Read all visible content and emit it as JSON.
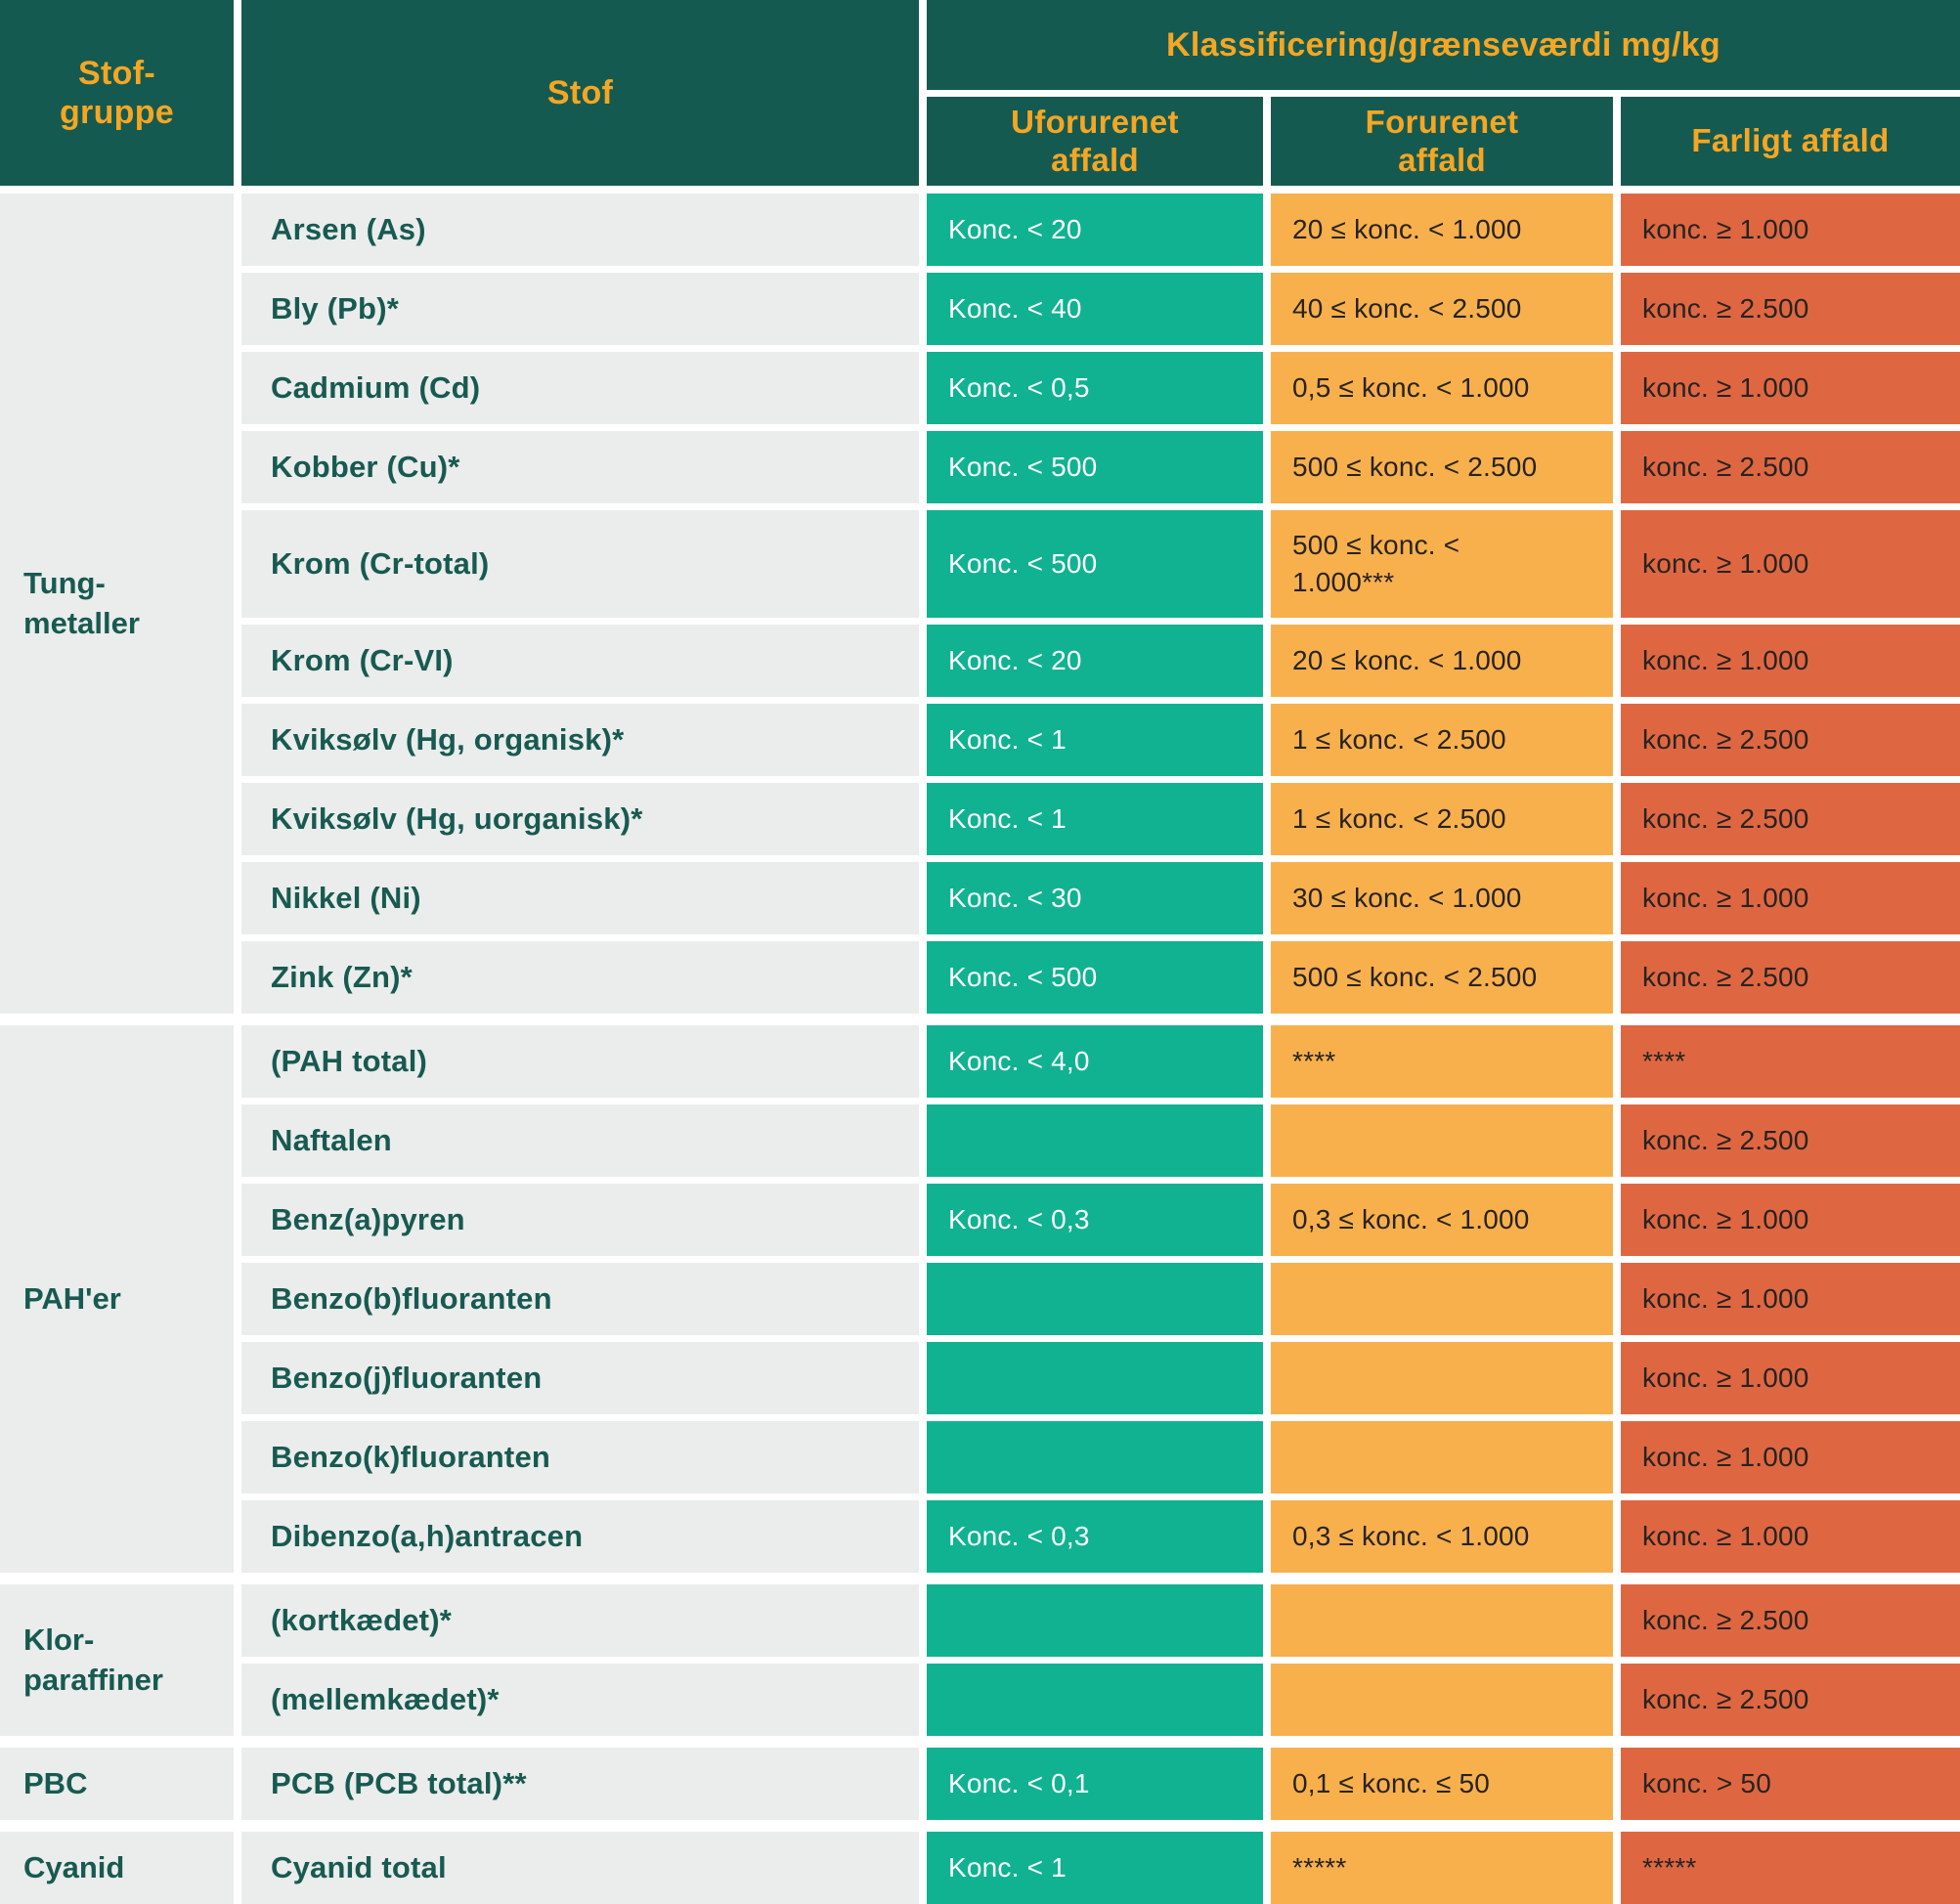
{
  "colors": {
    "header_bg": "#155a50",
    "header_text": "#f5a623",
    "cell_bg": "#ebecec",
    "name_text": "#175a51",
    "green": "#10b291",
    "orange": "#f8b04d",
    "red": "#de6742",
    "value_light": "#ffffff",
    "value_dark": "#272320"
  },
  "header": {
    "stof_gruppe": "Stof-\ngruppe",
    "stof": "Stof",
    "klassificering": "Klassificering/grænseværdi mg/kg",
    "uforurenet": "Uforurenet\naffald",
    "forurenet": "Forurenet\naffald",
    "farligt": "Farligt affald"
  },
  "groups": [
    {
      "label": "Tung-\nmetaller",
      "rows": [
        {
          "stof": "Arsen (As)",
          "uforurenet": "Konc. < 20",
          "forurenet": "20 ≤ konc. < 1.000",
          "farligt": "konc. ≥ 1.000"
        },
        {
          "stof": "Bly (Pb)*",
          "uforurenet": "Konc. < 40",
          "forurenet": "40 ≤ konc. < 2.500",
          "farligt": "konc. ≥ 2.500"
        },
        {
          "stof": "Cadmium (Cd)",
          "uforurenet": "Konc. < 0,5",
          "forurenet": "0,5 ≤ konc. < 1.000",
          "farligt": "konc. ≥ 1.000"
        },
        {
          "stof": "Kobber (Cu)*",
          "uforurenet": "Konc. < 500",
          "forurenet": "500 ≤ konc. < 2.500",
          "farligt": "konc. ≥ 2.500"
        },
        {
          "stof": "Krom (Cr-total)",
          "uforurenet": "Konc. < 500",
          "forurenet": "500 ≤ konc. <\n1.000***",
          "farligt": "konc. ≥ 1.000",
          "tall": true
        },
        {
          "stof": "Krom (Cr-VI)",
          "uforurenet": "Konc. < 20",
          "forurenet": "20 ≤ konc. < 1.000",
          "farligt": "konc. ≥ 1.000"
        },
        {
          "stof": "Kviksølv (Hg, organisk)*",
          "uforurenet": "Konc. < 1",
          "forurenet": "1 ≤ konc. < 2.500",
          "farligt": "konc. ≥ 2.500"
        },
        {
          "stof": "Kviksølv (Hg, uorganisk)*",
          "uforurenet": "Konc. < 1",
          "forurenet": "1 ≤ konc. < 2.500",
          "farligt": "konc. ≥ 2.500"
        },
        {
          "stof": "Nikkel (Ni)",
          "uforurenet": "Konc. < 30",
          "forurenet": "30 ≤ konc. < 1.000",
          "farligt": "konc. ≥ 1.000"
        },
        {
          "stof": "Zink (Zn)*",
          "uforurenet": "Konc. < 500",
          "forurenet": "500 ≤ konc. < 2.500",
          "farligt": "konc. ≥ 2.500"
        }
      ]
    },
    {
      "label": "PAH'er",
      "rows": [
        {
          "stof": "(PAH total)",
          "uforurenet": "Konc. < 4,0",
          "forurenet": "****",
          "farligt": "****"
        },
        {
          "stof": "Naftalen",
          "uforurenet": "",
          "forurenet": "",
          "farligt": "konc. ≥ 2.500"
        },
        {
          "stof": "Benz(a)pyren",
          "uforurenet": "Konc. < 0,3",
          "forurenet": "0,3 ≤ konc. < 1.000",
          "farligt": "konc. ≥ 1.000"
        },
        {
          "stof": "Benzo(b)fluoranten",
          "uforurenet": "",
          "forurenet": "",
          "farligt": "konc. ≥ 1.000"
        },
        {
          "stof": "Benzo(j)fluoranten",
          "uforurenet": "",
          "forurenet": "",
          "farligt": "konc. ≥ 1.000"
        },
        {
          "stof": "Benzo(k)fluoranten",
          "uforurenet": "",
          "forurenet": "",
          "farligt": "konc. ≥ 1.000"
        },
        {
          "stof": "Dibenzo(a,h)antracen",
          "uforurenet": "Konc. < 0,3",
          "forurenet": "0,3 ≤ konc. < 1.000",
          "farligt": "konc. ≥ 1.000"
        }
      ]
    },
    {
      "label": "Klor-\nparaffiner",
      "rows": [
        {
          "stof": "(kortkædet)*",
          "uforurenet": "",
          "forurenet": "",
          "farligt": "konc. ≥ 2.500"
        },
        {
          "stof": "(mellemkædet)*",
          "uforurenet": "",
          "forurenet": "",
          "farligt": "konc. ≥ 2.500"
        }
      ]
    },
    {
      "label": "PBC",
      "rows": [
        {
          "stof": "PCB (PCB total)**",
          "uforurenet": "Konc. < 0,1",
          "forurenet": "0,1 ≤ konc. ≤ 50",
          "farligt": "konc. > 50"
        }
      ]
    },
    {
      "label": "Cyanid",
      "rows": [
        {
          "stof": "Cyanid total",
          "uforurenet": "Konc. < 1",
          "forurenet": "*****",
          "farligt": "*****"
        }
      ]
    }
  ]
}
